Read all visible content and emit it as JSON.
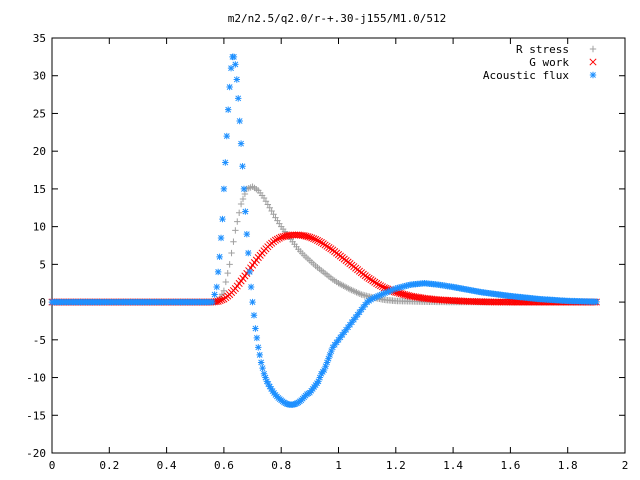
{
  "chart_data": {
    "type": "scatter",
    "title": "m2/n2.5/q2.0/r-+.30-j155/M1.0/512",
    "xlim": [
      0,
      2
    ],
    "ylim": [
      -20,
      35
    ],
    "x_ticks": [
      "0",
      "0.2",
      "0.4",
      "0.6",
      "0.8",
      "1",
      "1.2",
      "1.4",
      "1.6",
      "1.8",
      "2"
    ],
    "y_ticks": [
      "35",
      "30",
      "25",
      "20",
      "15",
      "10",
      "5",
      "0",
      "-5",
      "-10",
      "-15",
      "-20"
    ],
    "grid": false,
    "legend_position": "top-right",
    "series": [
      {
        "name": "R stress",
        "marker": "plus",
        "color": "#a0a0a0",
        "x": [
          0.0,
          0.56,
          0.58,
          0.6,
          0.62,
          0.64,
          0.66,
          0.68,
          0.7,
          0.72,
          0.74,
          0.76,
          0.78,
          0.8,
          0.82,
          0.84,
          0.86,
          0.88,
          0.9,
          0.92,
          0.94,
          0.96,
          0.98,
          1.0,
          1.04,
          1.08,
          1.12,
          1.16,
          1.2,
          1.3,
          1.4,
          1.5,
          1.6,
          1.7,
          1.8,
          1.9
        ],
        "y": [
          0.0,
          0.0,
          0.1,
          1.5,
          5.0,
          9.5,
          13.0,
          15.0,
          15.3,
          14.8,
          13.8,
          12.5,
          11.2,
          10.0,
          9.0,
          8.0,
          7.0,
          6.2,
          5.5,
          4.8,
          4.2,
          3.6,
          3.0,
          2.5,
          1.7,
          1.0,
          0.6,
          0.3,
          0.15,
          0.05,
          0.0,
          0.0,
          0.0,
          0.0,
          0.0,
          0.0
        ]
      },
      {
        "name": "G work",
        "marker": "cross",
        "color": "#ff0000",
        "x": [
          0.0,
          0.56,
          0.58,
          0.6,
          0.62,
          0.64,
          0.66,
          0.68,
          0.7,
          0.72,
          0.74,
          0.76,
          0.78,
          0.8,
          0.82,
          0.84,
          0.86,
          0.88,
          0.9,
          0.92,
          0.94,
          0.96,
          0.98,
          1.0,
          1.02,
          1.04,
          1.06,
          1.08,
          1.1,
          1.12,
          1.14,
          1.16,
          1.2,
          1.25,
          1.3,
          1.35,
          1.4,
          1.45,
          1.5,
          1.55,
          1.6,
          1.7,
          1.8,
          1.9
        ],
        "y": [
          0.0,
          0.0,
          0.1,
          0.4,
          1.0,
          1.8,
          2.8,
          3.8,
          4.9,
          5.9,
          6.8,
          7.6,
          8.2,
          8.6,
          8.8,
          8.9,
          8.9,
          8.8,
          8.6,
          8.3,
          7.9,
          7.4,
          6.9,
          6.3,
          5.7,
          5.1,
          4.5,
          3.9,
          3.3,
          2.8,
          2.3,
          1.9,
          1.3,
          0.8,
          0.5,
          0.3,
          0.2,
          0.1,
          0.05,
          0.0,
          0.0,
          0.0,
          0.0,
          0.0
        ]
      },
      {
        "name": "Acoustic flux",
        "marker": "star",
        "color": "#1e90ff",
        "x": [
          0.0,
          0.56,
          0.575,
          0.585,
          0.595,
          0.6,
          0.605,
          0.61,
          0.615,
          0.62,
          0.625,
          0.63,
          0.635,
          0.64,
          0.645,
          0.65,
          0.655,
          0.66,
          0.665,
          0.67,
          0.675,
          0.68,
          0.69,
          0.7,
          0.71,
          0.72,
          0.73,
          0.74,
          0.75,
          0.76,
          0.77,
          0.78,
          0.79,
          0.8,
          0.81,
          0.82,
          0.83,
          0.84,
          0.85,
          0.86,
          0.87,
          0.88,
          0.89,
          0.9,
          0.91,
          0.92,
          0.93,
          0.94,
          0.95,
          0.96,
          0.97,
          0.98,
          1.0,
          1.02,
          1.04,
          1.06,
          1.08,
          1.1,
          1.12,
          1.15,
          1.2,
          1.25,
          1.3,
          1.35,
          1.4,
          1.5,
          1.6,
          1.7,
          1.8,
          1.9
        ],
        "y": [
          0.0,
          0.0,
          2.0,
          6.0,
          11.0,
          15.0,
          18.5,
          22.0,
          25.5,
          28.5,
          31.0,
          32.5,
          32.5,
          31.5,
          29.5,
          27.0,
          24.0,
          21.0,
          18.0,
          15.0,
          12.0,
          9.0,
          4.0,
          0.0,
          -3.5,
          -6.0,
          -8.0,
          -9.5,
          -10.5,
          -11.2,
          -11.8,
          -12.3,
          -12.7,
          -13.0,
          -13.3,
          -13.5,
          -13.6,
          -13.6,
          -13.5,
          -13.3,
          -13.0,
          -12.6,
          -12.2,
          -12.0,
          -11.5,
          -11.0,
          -10.5,
          -9.5,
          -9.0,
          -8.0,
          -7.0,
          -6.0,
          -5.0,
          -4.0,
          -3.0,
          -2.0,
          -1.0,
          0.0,
          0.5,
          1.0,
          1.8,
          2.3,
          2.5,
          2.3,
          2.0,
          1.3,
          0.8,
          0.4,
          0.15,
          0.05
        ]
      }
    ]
  }
}
